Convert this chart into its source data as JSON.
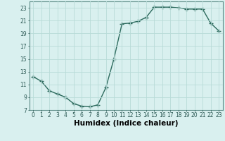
{
  "x": [
    0,
    1,
    2,
    3,
    4,
    5,
    6,
    7,
    8,
    9,
    10,
    11,
    12,
    13,
    14,
    15,
    16,
    17,
    18,
    19,
    20,
    21,
    22,
    23
  ],
  "y": [
    12.2,
    11.5,
    10.0,
    9.5,
    9.0,
    8.0,
    7.6,
    7.5,
    7.8,
    10.5,
    15.0,
    20.5,
    20.6,
    20.9,
    21.5,
    23.1,
    23.1,
    23.1,
    23.0,
    22.8,
    22.8,
    22.8,
    20.6,
    19.4
  ],
  "line_color": "#2d6b5e",
  "marker": "+",
  "markersize": 4,
  "linewidth": 1.0,
  "markeredgewidth": 1.0,
  "bg_color": "#d9f0ef",
  "grid_color": "#b8dbd8",
  "xlabel": "Humidex (Indice chaleur)",
  "xlim": [
    -0.5,
    23.5
  ],
  "ylim": [
    7,
    24
  ],
  "yticks": [
    7,
    9,
    11,
    13,
    15,
    17,
    19,
    21,
    23
  ],
  "xticks": [
    0,
    1,
    2,
    3,
    4,
    5,
    6,
    7,
    8,
    9,
    10,
    11,
    12,
    13,
    14,
    15,
    16,
    17,
    18,
    19,
    20,
    21,
    22,
    23
  ],
  "tick_fontsize": 5.5,
  "xlabel_fontsize": 7.5,
  "spine_color": "#5a8a85"
}
